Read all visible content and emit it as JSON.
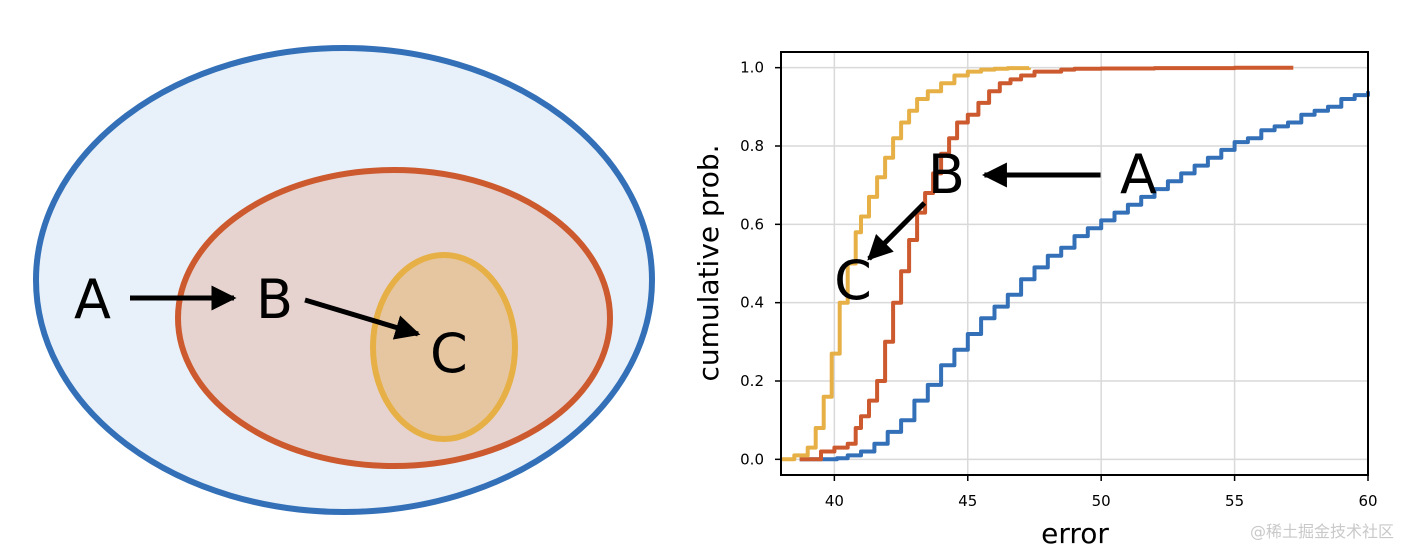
{
  "diagram": {
    "labels": {
      "a": "A",
      "b": "B",
      "c": "C"
    },
    "colors": {
      "outer_stroke": "#3370b8",
      "outer_fill": "#e8f1f9",
      "middle_stroke": "#cc5a2e",
      "middle_fill": "#e6d3cf",
      "inner_stroke": "#e6b046",
      "inner_fill": "#e6c6a1"
    }
  },
  "chart_data": {
    "type": "line",
    "title": "",
    "xlabel": "error",
    "ylabel": "cumulative prob.",
    "xlim": [
      38,
      60
    ],
    "ylim": [
      -0.04,
      1.04
    ],
    "xticks": [
      40,
      45,
      50,
      55,
      60
    ],
    "yticks": [
      0.0,
      0.2,
      0.4,
      0.6,
      0.8,
      1.0
    ],
    "xtick_labels": [
      "40",
      "45",
      "50",
      "55",
      "60"
    ],
    "ytick_labels": [
      "0.0",
      "0.2",
      "0.4",
      "0.6",
      "0.8",
      "1.0"
    ],
    "grid": true,
    "series": [
      {
        "color": "#3370b8",
        "x": [
          38.7,
          39.5,
          40.1,
          40.5,
          41.0,
          41.5,
          42.0,
          42.5,
          43.0,
          43.5,
          44.0,
          44.5,
          45.0,
          45.5,
          46.0,
          46.5,
          47.0,
          47.5,
          48.0,
          48.5,
          49.0,
          49.5,
          50.0,
          50.5,
          51.0,
          51.5,
          52.0,
          52.5,
          53.0,
          53.5,
          54.0,
          54.5,
          55.0,
          55.5,
          56.0,
          56.5,
          57.0,
          57.5,
          58.0,
          58.5,
          59.0,
          59.5,
          60.0
        ],
        "y": [
          0.0,
          0.0,
          0.003,
          0.01,
          0.02,
          0.04,
          0.07,
          0.1,
          0.15,
          0.19,
          0.24,
          0.28,
          0.32,
          0.36,
          0.39,
          0.42,
          0.46,
          0.49,
          0.52,
          0.54,
          0.57,
          0.59,
          0.61,
          0.63,
          0.65,
          0.67,
          0.69,
          0.71,
          0.73,
          0.75,
          0.77,
          0.79,
          0.81,
          0.82,
          0.84,
          0.85,
          0.86,
          0.88,
          0.89,
          0.9,
          0.92,
          0.93,
          0.94
        ]
      },
      {
        "color": "#cc5a2e",
        "x": [
          38.7,
          39.0,
          39.5,
          40.0,
          40.5,
          40.8,
          41.0,
          41.3,
          41.6,
          41.9,
          42.2,
          42.5,
          42.8,
          43.1,
          43.4,
          43.7,
          44.0,
          44.3,
          44.6,
          45.0,
          45.4,
          45.8,
          46.2,
          46.6,
          47.0,
          47.5,
          48.0,
          48.5,
          49.0,
          50.0,
          51.0,
          52.0,
          53.0,
          54.0,
          55.0,
          56.0,
          57.2
        ],
        "y": [
          0.0,
          0.0,
          0.02,
          0.03,
          0.04,
          0.08,
          0.11,
          0.15,
          0.2,
          0.3,
          0.4,
          0.48,
          0.56,
          0.63,
          0.68,
          0.73,
          0.78,
          0.82,
          0.86,
          0.88,
          0.91,
          0.94,
          0.96,
          0.97,
          0.98,
          0.99,
          0.99,
          0.995,
          0.997,
          0.998,
          0.998,
          0.999,
          0.999,
          0.999,
          1.0,
          1.0,
          1.0
        ]
      },
      {
        "color": "#e6b046",
        "x": [
          38.0,
          38.5,
          39.0,
          39.3,
          39.6,
          39.9,
          40.2,
          40.5,
          40.8,
          41.0,
          41.3,
          41.6,
          41.9,
          42.2,
          42.5,
          42.8,
          43.1,
          43.5,
          44.0,
          44.5,
          45.0,
          45.5,
          46.0,
          46.5,
          47.3
        ],
        "y": [
          0.0,
          0.01,
          0.03,
          0.08,
          0.16,
          0.27,
          0.4,
          0.5,
          0.58,
          0.62,
          0.67,
          0.72,
          0.77,
          0.82,
          0.86,
          0.89,
          0.92,
          0.94,
          0.96,
          0.98,
          0.99,
          0.995,
          0.997,
          0.999,
          1.0
        ]
      }
    ],
    "annotations": [
      {
        "text": "A",
        "x": 51.4,
        "y": 0.68
      },
      {
        "text": "B",
        "x": 44.2,
        "y": 0.68
      },
      {
        "text": "C",
        "x": 40.7,
        "y": 0.41
      }
    ]
  },
  "watermark": "@稀土掘金技术社区"
}
